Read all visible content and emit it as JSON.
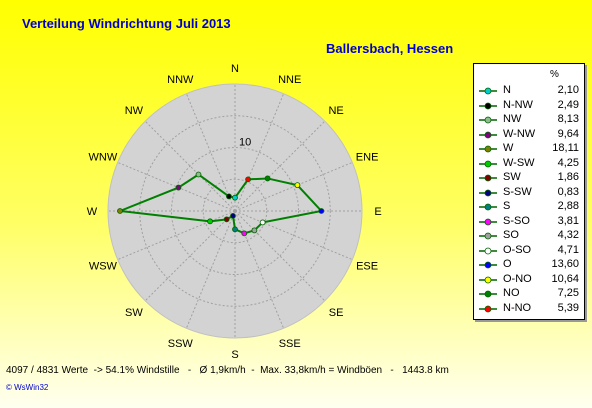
{
  "title": "Verteilung Windrichtung    Juli 2013",
  "location": "Ballersbach, Hessen",
  "footer": "4097 / 4831 Werte  -> 54.1% Windstille   -   Ø 1,9km/h  -  Max. 33,8km/h = Windböen   -   1443.8 km",
  "credit": "© WsWin32",
  "chart_data": {
    "type": "radar",
    "ring_label": "10",
    "rmax": 20,
    "rings": [
      5,
      10,
      15
    ],
    "unit": "%",
    "directions": [
      "N",
      "NNE",
      "NE",
      "ENE",
      "E",
      "ESE",
      "SE",
      "SSE",
      "S",
      "SSW",
      "SW",
      "WSW",
      "W",
      "WNW",
      "NW",
      "NNW"
    ],
    "series_values": [
      2.1,
      5.39,
      7.25,
      10.64,
      13.6,
      4.71,
      4.32,
      3.81,
      2.88,
      0.83,
      1.86,
      4.25,
      18.11,
      9.64,
      8.13,
      2.49
    ],
    "series_color": "#008000",
    "area_color": "#d3d3d3",
    "legend": [
      {
        "name": "N",
        "value": "2,10",
        "color": "#00cccc"
      },
      {
        "name": "N-NW",
        "value": "2,49",
        "color": "#000000"
      },
      {
        "name": "NW",
        "value": "8,13",
        "color": "#8fbc8f"
      },
      {
        "name": "W-NW",
        "value": "9,64",
        "color": "#800080"
      },
      {
        "name": "W",
        "value": "18,11",
        "color": "#808000"
      },
      {
        "name": "W-SW",
        "value": "4,25",
        "color": "#00cc00"
      },
      {
        "name": "SW",
        "value": "1,86",
        "color": "#800000"
      },
      {
        "name": "S-SW",
        "value": "0,83",
        "color": "#000080"
      },
      {
        "name": "S",
        "value": "2,88",
        "color": "#008080"
      },
      {
        "name": "S-SO",
        "value": "3,81",
        "color": "#ff00ff"
      },
      {
        "name": "SO",
        "value": "4,32",
        "color": "#a0a0a0"
      },
      {
        "name": "O-SO",
        "value": "4,71",
        "color": "#ffffff"
      },
      {
        "name": "O",
        "value": "13,60",
        "color": "#0000ff"
      },
      {
        "name": "O-NO",
        "value": "10,64",
        "color": "#ffff00"
      },
      {
        "name": "NO",
        "value": "7,25",
        "color": "#008000"
      },
      {
        "name": "N-NO",
        "value": "5,39",
        "color": "#ff0000"
      }
    ]
  }
}
